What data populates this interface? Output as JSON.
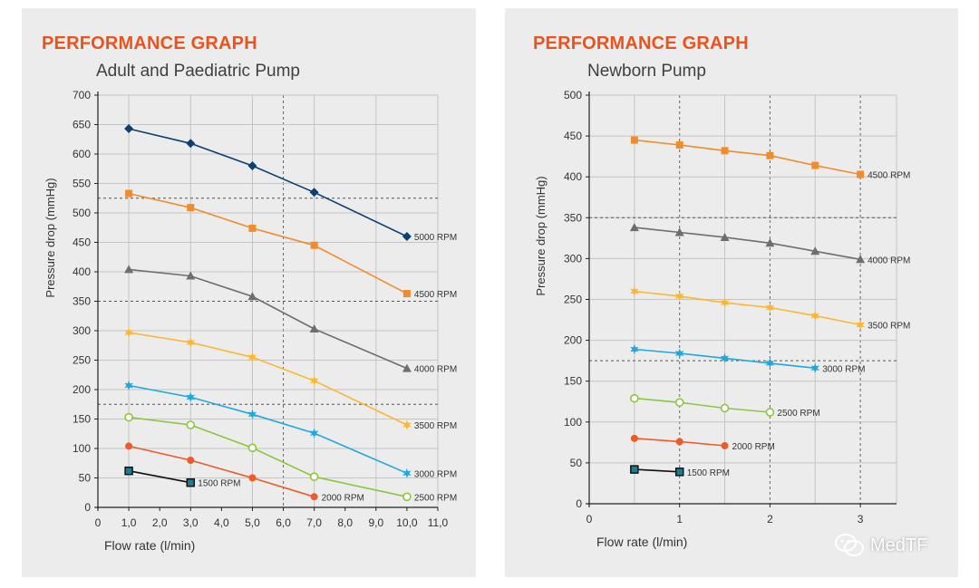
{
  "left_panel": {
    "heading": "PERFORMANCE GRAPH",
    "subtitle": "Adult and Paediatric Pump"
  },
  "right_panel": {
    "heading": "PERFORMANCE GRAPH",
    "subtitle": "Newborn Pump"
  },
  "watermark": {
    "text": "MedTF",
    "icon": "wechat-logo-icon"
  },
  "colors": {
    "heading": "#e8541e",
    "5000 RPM": "#0e3f6e",
    "4500 RPM": "#f08c2a",
    "4000 RPM": "#6d6e70",
    "3500 RPM": "#fbb72f",
    "3000 RPM": "#1fa8e0",
    "2500 RPM": "#8cc63f",
    "2000 RPM": "#ec5b28",
    "1500 RPM": "#222222"
  },
  "chart_data": [
    {
      "type": "line",
      "title": "PERFORMANCE GRAPH",
      "subtitle": "Adult and Paediatric Pump",
      "xlabel": "Flow rate (l/min)",
      "ylabel": "Pressure drop (mmHg)",
      "xlim": [
        0,
        11
      ],
      "ylim": [
        0,
        700
      ],
      "x_ticks": [
        "0",
        "1,0",
        "2,0",
        "3,0",
        "4,0",
        "5,0",
        "6,0",
        "7,0",
        "8,0",
        "9,0",
        "10,0",
        "11,0"
      ],
      "y_ticks": [
        "0",
        "50",
        "100",
        "150",
        "200",
        "250",
        "300",
        "350",
        "400",
        "450",
        "500",
        "550",
        "600",
        "650",
        "700"
      ],
      "grid": true,
      "legend": "inline labels at series ends",
      "series": [
        {
          "name": "5000 RPM",
          "marker": "diamond",
          "x": [
            1,
            3,
            5,
            7,
            10
          ],
          "y": [
            643,
            618,
            580,
            535,
            460
          ]
        },
        {
          "name": "4500 RPM",
          "marker": "square",
          "x": [
            1,
            3,
            5,
            7,
            10
          ],
          "y": [
            533,
            509,
            474,
            445,
            363
          ]
        },
        {
          "name": "4000 RPM",
          "marker": "triangle",
          "x": [
            1,
            3,
            5,
            7,
            10
          ],
          "y": [
            404,
            393,
            358,
            303,
            236
          ]
        },
        {
          "name": "3500 RPM",
          "marker": "star",
          "x": [
            1,
            3,
            5,
            7,
            10
          ],
          "y": [
            297,
            280,
            255,
            215,
            140
          ]
        },
        {
          "name": "3000 RPM",
          "marker": "star",
          "x": [
            1,
            3,
            5,
            7,
            10
          ],
          "y": [
            207,
            187,
            158,
            126,
            58
          ]
        },
        {
          "name": "2500 RPM",
          "marker": "circle-open",
          "x": [
            1,
            3,
            5,
            7,
            10
          ],
          "y": [
            153,
            140,
            101,
            52,
            18
          ]
        },
        {
          "name": "2000 RPM",
          "marker": "circle",
          "x": [
            1,
            3,
            5,
            7
          ],
          "y": [
            104,
            80,
            50,
            18
          ]
        },
        {
          "name": "1500 RPM",
          "marker": "square-teal",
          "x": [
            1,
            3
          ],
          "y": [
            62,
            42
          ]
        }
      ]
    },
    {
      "type": "line",
      "title": "PERFORMANCE GRAPH",
      "subtitle": "Newborn Pump",
      "xlabel": "Flow rate (l/min)",
      "ylabel": "Pressure drop (mmHg)",
      "xlim": [
        0,
        3.4
      ],
      "ylim": [
        0,
        500
      ],
      "x_ticks": [
        "0",
        "1",
        "2",
        "3"
      ],
      "y_ticks": [
        "0",
        "50",
        "100",
        "150",
        "200",
        "250",
        "300",
        "350",
        "400",
        "450",
        "500"
      ],
      "grid": true,
      "legend": "inline labels at series ends",
      "series": [
        {
          "name": "4500 RPM",
          "marker": "square",
          "x": [
            0.5,
            1,
            1.5,
            2,
            2.5,
            3
          ],
          "y": [
            445,
            439,
            432,
            426,
            414,
            403
          ]
        },
        {
          "name": "4000 RPM",
          "marker": "triangle",
          "x": [
            0.5,
            1,
            1.5,
            2,
            2.5,
            3
          ],
          "y": [
            338,
            332,
            326,
            319,
            309,
            299
          ]
        },
        {
          "name": "3500 RPM",
          "marker": "star",
          "x": [
            0.5,
            1,
            1.5,
            2,
            2.5,
            3
          ],
          "y": [
            260,
            254,
            246,
            240,
            230,
            219
          ]
        },
        {
          "name": "3000 RPM",
          "marker": "star",
          "x": [
            0.5,
            1,
            1.5,
            2,
            2.5
          ],
          "y": [
            189,
            184,
            178,
            172,
            166
          ]
        },
        {
          "name": "2500 RPM",
          "marker": "circle-open",
          "x": [
            0.5,
            1,
            1.5,
            2
          ],
          "y": [
            129,
            124,
            117,
            112
          ]
        },
        {
          "name": "2000 RPM",
          "marker": "circle",
          "x": [
            0.5,
            1,
            1.5
          ],
          "y": [
            80,
            76,
            71
          ]
        },
        {
          "name": "1500 RPM",
          "marker": "square-teal",
          "x": [
            0.5,
            1
          ],
          "y": [
            42,
            39
          ]
        }
      ]
    }
  ]
}
